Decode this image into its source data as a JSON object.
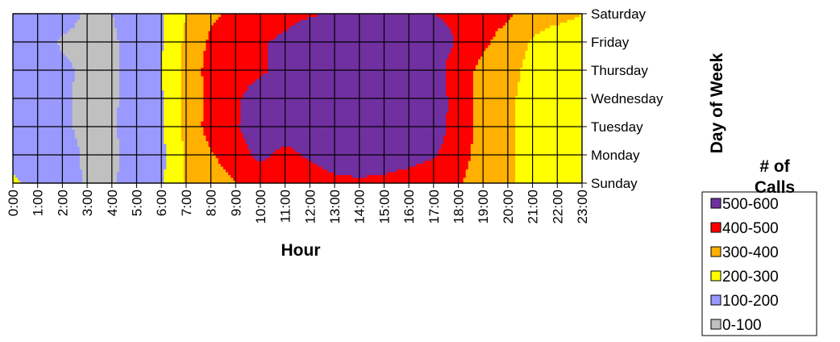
{
  "chart_data": {
    "type": "heatmap",
    "subtype": "contour",
    "xlabel": "Hour",
    "ylabel": "Day of Week",
    "x": [
      "0:00",
      "1:00",
      "2:00",
      "3:00",
      "4:00",
      "5:00",
      "6:00",
      "7:00",
      "8:00",
      "9:00",
      "10:00",
      "11:00",
      "12:00",
      "13:00",
      "14:00",
      "15:00",
      "16:00",
      "17:00",
      "18:00",
      "19:00",
      "20:00",
      "21:00",
      "22:00",
      "23:00"
    ],
    "y": [
      "Sunday",
      "Monday",
      "Tuesday",
      "Wednesday",
      "Thursday",
      "Friday",
      "Saturday"
    ],
    "z": [
      [
        220,
        150,
        140,
        90,
        90,
        140,
        190,
        310,
        350,
        400,
        410,
        420,
        430,
        470,
        480,
        470,
        450,
        430,
        410,
        350,
        320,
        260,
        220,
        220
      ],
      [
        160,
        140,
        150,
        80,
        85,
        130,
        170,
        310,
        390,
        450,
        530,
        460,
        520,
        560,
        570,
        560,
        540,
        510,
        440,
        360,
        310,
        270,
        250,
        230
      ],
      [
        150,
        130,
        120,
        70,
        90,
        140,
        190,
        330,
        440,
        490,
        560,
        570,
        580,
        590,
        590,
        590,
        590,
        560,
        450,
        370,
        310,
        280,
        230,
        210
      ],
      [
        140,
        130,
        120,
        70,
        85,
        140,
        190,
        330,
        430,
        490,
        530,
        560,
        580,
        570,
        570,
        580,
        570,
        550,
        460,
        360,
        310,
        280,
        230,
        210
      ],
      [
        140,
        140,
        120,
        80,
        85,
        140,
        200,
        330,
        440,
        480,
        490,
        520,
        560,
        580,
        580,
        570,
        560,
        540,
        450,
        370,
        320,
        280,
        240,
        210
      ],
      [
        140,
        130,
        90,
        80,
        85,
        140,
        190,
        320,
        420,
        470,
        490,
        520,
        570,
        580,
        580,
        570,
        580,
        550,
        490,
        420,
        350,
        290,
        250,
        240
      ],
      [
        150,
        150,
        130,
        90,
        100,
        140,
        190,
        300,
        380,
        430,
        450,
        470,
        490,
        510,
        500,
        510,
        510,
        500,
        480,
        450,
        420,
        340,
        330,
        300
      ]
    ],
    "legend_title": "# of Calls",
    "bins": [
      {
        "label": "500-600",
        "min": 500,
        "max": 600,
        "color": "#7030A0"
      },
      {
        "label": "400-500",
        "min": 400,
        "max": 500,
        "color": "#FF0000"
      },
      {
        "label": "300-400",
        "min": 300,
        "max": 400,
        "color": "#FFB000"
      },
      {
        "label": "200-300",
        "min": 200,
        "max": 300,
        "color": "#FFFF00"
      },
      {
        "label": "100-200",
        "min": 100,
        "max": 200,
        "color": "#9999FF"
      },
      {
        "label": "0-100",
        "min": 0,
        "max": 100,
        "color": "#C0C0C0"
      }
    ],
    "grid": true,
    "legend_position": "bottom-right"
  }
}
